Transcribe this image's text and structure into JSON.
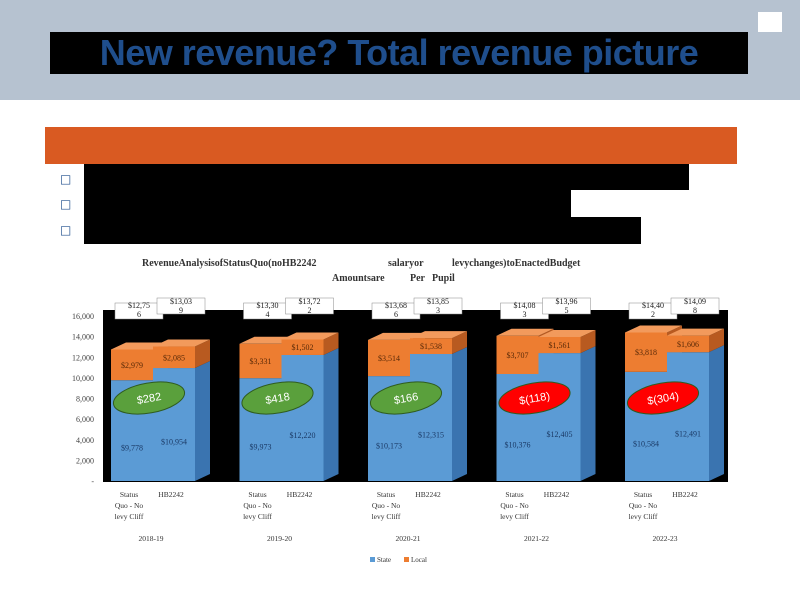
{
  "slide": {
    "title": "New revenue? Total revenue picture",
    "bullet_glyph": "□"
  },
  "chart_data": {
    "type": "bar",
    "stacked": true,
    "title_line1_left": "RevenueAnalysisofStatusQuo(noHB2242",
    "title_line1_mid": "salaryor",
    "title_line1_right": "levychanges)toEnactedBudget",
    "title_line2_left": "Amountsare",
    "title_line2_mid": "Per",
    "title_line2_right": "Pupil",
    "ylim": [
      0,
      16000
    ],
    "y_ticks": [
      "-",
      "2,000",
      "4,000",
      "6,000",
      "8,000",
      "10,000",
      "12,000",
      "14,000",
      "16,000"
    ],
    "colors": {
      "state": "#5b9bd5",
      "local": "#ed7d31"
    },
    "legend": [
      "State",
      "Local"
    ],
    "groups": [
      {
        "year": "2018-19",
        "bars": [
          {
            "label_lines": [
              "Status",
              "Quo   - No",
              "levy   Cliff"
            ],
            "state": 9778,
            "local": 2979,
            "state_label": "$9,778",
            "local_label": "$2,979",
            "total_lines": [
              "$12,75",
              "6"
            ]
          },
          {
            "label_lines": [
              "HB2242"
            ],
            "state": 10954,
            "local": 2085,
            "state_label": "$10,954",
            "local_label": "$2,085",
            "total_lines": [
              "$13,03",
              "9"
            ]
          }
        ],
        "diff": {
          "label": "$282",
          "color": "#5aa03c"
        }
      },
      {
        "year": "2019-20",
        "bars": [
          {
            "label_lines": [
              "Status",
              "Quo   - No",
              "levy   Cliff"
            ],
            "state": 9973,
            "local": 3331,
            "state_label": "$9,973",
            "local_label": "$3,331",
            "total_lines": [
              "$13,30",
              "4"
            ]
          },
          {
            "label_lines": [
              "HB2242"
            ],
            "state": 12220,
            "local": 1502,
            "state_label": "$12,220",
            "local_label": "$1,502",
            "total_lines": [
              "$13,72",
              "2"
            ]
          }
        ],
        "diff": {
          "label": "$418",
          "color": "#5aa03c"
        }
      },
      {
        "year": "2020-21",
        "bars": [
          {
            "label_lines": [
              "Status",
              "Quo   - No",
              "levy   Cliff"
            ],
            "state": 10173,
            "local": 3514,
            "state_label": "$10,173",
            "local_label": "$3,514",
            "total_lines": [
              "$13,68",
              "6"
            ]
          },
          {
            "label_lines": [
              "HB2242"
            ],
            "state": 12315,
            "local": 1538,
            "state_label": "$12,315",
            "local_label": "$1,538",
            "total_lines": [
              "$13,85",
              "3"
            ]
          }
        ],
        "diff": {
          "label": "$166",
          "color": "#5aa03c"
        }
      },
      {
        "year": "2021-22",
        "bars": [
          {
            "label_lines": [
              "Status",
              "Quo   - No",
              "levy   Cliff"
            ],
            "state": 10376,
            "local": 3707,
            "state_label": "$10,376",
            "local_label": "$3,707",
            "total_lines": [
              "$14,08",
              "3"
            ]
          },
          {
            "label_lines": [
              "HB2242"
            ],
            "state": 12405,
            "local": 1561,
            "state_label": "$12,405",
            "local_label": "$1,561",
            "total_lines": [
              "$13,96",
              "5"
            ]
          }
        ],
        "diff": {
          "label": "$(118)",
          "color": "#ff0000"
        }
      },
      {
        "year": "2022-23",
        "bars": [
          {
            "label_lines": [
              "Status",
              "Quo   - No",
              "levy   Cliff"
            ],
            "state": 10584,
            "local": 3818,
            "state_label": "$10,584",
            "local_label": "$3,818",
            "total_lines": [
              "$14,40",
              "2"
            ]
          },
          {
            "label_lines": [
              "HB2242"
            ],
            "state": 12491,
            "local": 1606,
            "state_label": "$12,491",
            "local_label": "$1,606",
            "total_lines": [
              "$14,09",
              "8"
            ]
          }
        ],
        "diff": {
          "label": "$(304)",
          "color": "#ff0000"
        }
      }
    ]
  }
}
